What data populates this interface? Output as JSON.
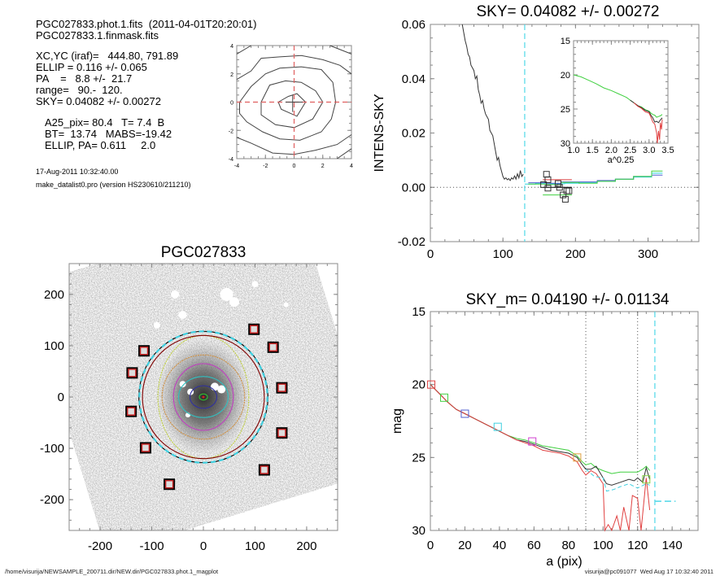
{
  "header": {
    "file_line": "PGC027833.phot.1.fits  (2011-04-01T20:20:01)",
    "mask_line": "PGC027833.1.finmask.fits",
    "xcyc": "XC,YC (iraf)=   444.80, 791.89",
    "ellip": "ELLIP = 0.116 +/- 0.065",
    "pa": "PA    =   8.8 +/-  21.7",
    "range": "range=   90.-  120.",
    "sky": "SKY= 0.04082 +/- 0.00272",
    "a25": "A25_pix= 80.4   T= 7.4  B",
    "bt": "BT=  13.74   MABS=-19.42",
    "ellip_pa": "ELLIP, PA= 0.611     2.0",
    "date": "17-Aug-2011 10:32:40.00",
    "program": "make_datalist0.pro (version HS230610/211210)"
  },
  "footer": {
    "path": "/home/visurija/NEWSAMPLE_200711.dir/NEW.dir/PGC027833.phot.1_magplot",
    "user_stamp": "visurija@pc091077  Wed Aug 17 10:32:40 2011"
  },
  "chart_data": [
    {
      "id": "center-contour",
      "type": "line",
      "title": "",
      "xlim": [
        -4,
        4
      ],
      "ylim": [
        -4,
        4
      ],
      "xticks": [
        "-4",
        "-2",
        "0",
        "2",
        "4"
      ],
      "yticks": [
        "-4",
        "-2",
        "0",
        "2",
        "4"
      ],
      "crosshair": {
        "x": 0,
        "y": 0,
        "color": "#e06060"
      },
      "contours": [
        [
          [
            -1.1,
            0
          ],
          [
            -0.4,
            0.4
          ],
          [
            0.2,
            0.6
          ],
          [
            0.8,
            0
          ],
          [
            0.2,
            -1.0
          ],
          [
            -0.9,
            -0.5
          ],
          [
            -1.1,
            0
          ]
        ],
        [
          [
            -2.3,
            0
          ],
          [
            -1.7,
            1.2
          ],
          [
            -0.6,
            1.5
          ],
          [
            0.5,
            1.4
          ],
          [
            1.5,
            0.8
          ],
          [
            2.0,
            0
          ],
          [
            1.3,
            -1.2
          ],
          [
            0,
            -1.8
          ],
          [
            -1.3,
            -1.6
          ],
          [
            -2.3,
            -0.9
          ],
          [
            -2.3,
            0
          ]
        ],
        [
          [
            -3.8,
            0
          ],
          [
            -3.0,
            1.1
          ],
          [
            -2.0,
            2.0
          ],
          [
            -1.0,
            2.4
          ],
          [
            0.5,
            2.5
          ],
          [
            1.9,
            2.3
          ],
          [
            2.7,
            1.4
          ],
          [
            2.9,
            0
          ],
          [
            2.6,
            -1.2
          ],
          [
            1.9,
            -2.1
          ],
          [
            0.4,
            -2.7
          ],
          [
            -1.0,
            -2.6
          ],
          [
            -2.2,
            -2.1
          ],
          [
            -3.3,
            -1.4
          ],
          [
            -3.8,
            -0.8
          ],
          [
            -3.8,
            0
          ]
        ],
        [
          [
            -4,
            1.6
          ],
          [
            -3.0,
            2.2
          ],
          [
            -2.3,
            3.1
          ],
          [
            -1.0,
            3.2
          ],
          [
            0.5,
            3.3
          ],
          [
            2.0,
            3.0
          ],
          [
            3.2,
            2.6
          ],
          [
            4,
            2.0
          ]
        ],
        [
          [
            -4,
            -2.5
          ],
          [
            -3.0,
            -2.9
          ],
          [
            -1.5,
            -3.6
          ],
          [
            0.0,
            -3.7
          ],
          [
            1.5,
            -3.4
          ],
          [
            3.0,
            -3.0
          ],
          [
            4,
            -2.3
          ]
        ],
        [
          [
            -4,
            3.4
          ],
          [
            -3.0,
            4
          ]
        ],
        [
          [
            2.5,
            4
          ],
          [
            4,
            3.4
          ]
        ],
        [
          [
            3.0,
            -4
          ],
          [
            4,
            -3.3
          ]
        ]
      ]
    },
    {
      "id": "sky-profile",
      "type": "line",
      "title": "SKY= 0.04082 +/- 0.00272",
      "xlabel": "",
      "ylabel": "INTENS-SKY",
      "xlim": [
        0,
        370
      ],
      "ylim": [
        -0.02,
        0.06
      ],
      "xticks": [
        0,
        100,
        200,
        300
      ],
      "yticks": [
        -0.02,
        0.0,
        0.02,
        0.04,
        0.06
      ],
      "ytick_labels": [
        "-0.02",
        "0.00",
        "0.02",
        "0.04",
        "0.06"
      ],
      "zero_line": true,
      "vline_cyan": 130,
      "series": [
        {
          "name": "profile",
          "color": "#333333",
          "x": [
            44,
            46,
            48,
            50,
            52,
            54,
            56,
            58,
            60,
            62,
            64,
            66,
            68,
            70,
            72,
            74,
            76,
            78,
            80,
            82,
            84,
            86,
            88,
            90,
            92,
            94,
            96,
            98,
            100,
            102,
            104,
            106,
            108,
            110,
            112,
            114,
            116,
            118,
            120,
            122,
            124,
            126,
            128
          ],
          "y": [
            0.06,
            0.057,
            0.054,
            0.052,
            0.049,
            0.048,
            0.045,
            0.044,
            0.043,
            0.04,
            0.041,
            0.036,
            0.034,
            0.031,
            0.032,
            0.029,
            0.027,
            0.026,
            0.025,
            0.021,
            0.02,
            0.019,
            0.016,
            0.013,
            0.01,
            0.011,
            0.008,
            0.006,
            0.004,
            0.003,
            0.0035,
            0.0028,
            0.0032,
            0.0025,
            0.0035,
            0.003,
            0.0042,
            0.003,
            0.005,
            0.0035,
            0.0062,
            0.004,
            0.0048
          ]
        },
        {
          "name": "sky-steps-cyan",
          "color": "#2ad4e0",
          "step": true,
          "x": [
            130,
            145,
            165,
            185,
            205,
            230,
            255,
            280,
            305,
            320
          ],
          "y": [
            0.0012,
            0.0015,
            0.0013,
            0.0015,
            0.0018,
            0.0022,
            0.003,
            0.0038,
            0.0052,
            0.0052
          ]
        },
        {
          "name": "sky-steps-blue",
          "color": "#5060d0",
          "step": true,
          "x": [
            135,
            160,
            180,
            205,
            230,
            255,
            280,
            305,
            320
          ],
          "y": [
            0.0017,
            0.0015,
            0.002,
            0.002,
            0.0025,
            0.003,
            0.004,
            0.0045,
            0.0045
          ]
        },
        {
          "name": "sky-steps-green",
          "color": "#40d040",
          "step": true,
          "x": [
            135,
            160,
            180,
            205,
            230,
            255,
            280,
            305,
            320
          ],
          "y": [
            0.0012,
            0.001,
            0.0018,
            0.0015,
            0.0022,
            0.003,
            0.004,
            0.006,
            0.006
          ]
        },
        {
          "name": "sky-red",
          "color": "#e04040",
          "step": true,
          "x": [
            155,
            195
          ],
          "y": [
            0.0028,
            0.0028
          ]
        },
        {
          "name": "sky-black",
          "color": "#000000",
          "step": true,
          "x": [
            155,
            195
          ],
          "y": [
            0.0,
            0.0
          ]
        },
        {
          "name": "sky-green-low",
          "color": "#40d040",
          "step": true,
          "x": [
            155,
            195
          ],
          "y": [
            -0.0028,
            -0.0028
          ]
        }
      ],
      "markers": {
        "x": [
          160,
          162,
          156,
          162,
          176,
          178,
          183,
          186,
          188,
          191
        ],
        "y": [
          0.0048,
          0.0028,
          0.001,
          -0.0003,
          0.0014,
          0.0,
          -0.0028,
          -0.0044,
          -0.0013,
          -0.0013
        ]
      },
      "inset": {
        "xlabel": "a^0.25",
        "xlim": [
          1.0,
          3.5
        ],
        "ylim": [
          30,
          15
        ],
        "xticks": [
          "1.0",
          "1.5",
          "2.0",
          "2.5",
          "3.0",
          "3.5"
        ],
        "yticks": [
          "15",
          "20",
          "25",
          "30"
        ],
        "series": [
          {
            "name": "green",
            "color": "#40d040",
            "x": [
              1.0,
              1.2,
              1.4,
              1.6,
              1.8,
              2.0,
              2.2,
              2.4,
              2.5,
              2.6,
              2.7,
              2.8,
              2.9,
              3.0,
              3.05,
              3.1,
              3.15,
              3.2,
              3.25,
              3.3,
              3.35
            ],
            "y": [
              20.0,
              20.3,
              20.8,
              21.3,
              21.9,
              22.3,
              22.8,
              23.3,
              23.7,
              24.1,
              24.5,
              24.7,
              25.1,
              25.3,
              25.6,
              25.8,
              25.9,
              26.2,
              26.1,
              26.0,
              25.8
            ]
          },
          {
            "name": "black",
            "color": "#333333",
            "x": [
              2.5,
              2.6,
              2.7,
              2.8,
              2.9,
              3.0,
              3.05,
              3.1,
              3.15,
              3.2,
              3.25,
              3.3,
              3.35
            ],
            "y": [
              23.7,
              24.1,
              24.5,
              24.8,
              25.2,
              25.4,
              25.9,
              26.3,
              26.9,
              26.8,
              27.0,
              26.6,
              26.3
            ]
          },
          {
            "name": "red",
            "color": "#e04040",
            "x": [
              2.6,
              2.7,
              2.8,
              2.9,
              3.0,
              3.05,
              3.1,
              3.15,
              3.2,
              3.22,
              3.25,
              3.28,
              3.3,
              3.33,
              3.35
            ],
            "y": [
              24.1,
              24.6,
              24.9,
              25.4,
              25.6,
              26.2,
              26.9,
              27.2,
              28.5,
              30.0,
              28.2,
              29.5,
              27.0,
              28.0,
              26.5
            ]
          }
        ]
      }
    },
    {
      "id": "galaxy-image",
      "type": "scatter",
      "title": "PGC027833",
      "xlim": [
        -260,
        260
      ],
      "ylim": [
        -260,
        260
      ],
      "xticks": [
        -200,
        -100,
        0,
        100,
        200
      ],
      "yticks": [
        -200,
        -100,
        0,
        100,
        200
      ],
      "masked_squares": {
        "x": [
          -115,
          -138,
          -140,
          -112,
          -66,
          98,
          135,
          152,
          152,
          118
        ],
        "y": [
          90,
          47,
          -28,
          -99,
          -170,
          132,
          97,
          18,
          -70,
          -142
        ]
      },
      "ellipses": [
        {
          "name": "green",
          "color": "#30c030",
          "a": 8,
          "b": 6
        },
        {
          "name": "blue",
          "color": "#3030a0",
          "a": 26,
          "b": 22
        },
        {
          "name": "cyan",
          "color": "#30c0c0",
          "a": 48,
          "b": 40
        },
        {
          "name": "magenta",
          "color": "#c040c0",
          "a": 58,
          "b": 65
        },
        {
          "name": "orange",
          "color": "#d09040",
          "a": 80,
          "b": 82
        },
        {
          "name": "yellow",
          "color": "#c0d040",
          "a": 88,
          "b": 120
        },
        {
          "name": "darkred",
          "color": "#800000",
          "a": 118,
          "b": 120
        },
        {
          "name": "black",
          "color": "#000000",
          "a": 125,
          "b": 128
        },
        {
          "name": "cyan-dashed",
          "color": "#40d0e0",
          "a": 124,
          "b": 128
        }
      ]
    },
    {
      "id": "mag-profile",
      "type": "line",
      "title": "SKY_m=  0.04190 +/- 0.01134",
      "xlabel": "a (pix)",
      "ylabel": "mag",
      "xlim": [
        0,
        155
      ],
      "ylim": [
        30,
        15
      ],
      "xticks": [
        0,
        20,
        40,
        60,
        80,
        100,
        120,
        140
      ],
      "yticks": [
        15,
        20,
        25,
        30
      ],
      "vlines_dotted": [
        90,
        120
      ],
      "vline_cyan": 130,
      "cyan_hline": {
        "x": [
          130,
          142
        ],
        "y": 28
      },
      "markers": [
        {
          "x": 0.5,
          "y": 20.0,
          "color": "#e04040"
        },
        {
          "x": 8,
          "y": 20.9,
          "color": "#40d040"
        },
        {
          "x": 20,
          "y": 22.0,
          "color": "#5060d0"
        },
        {
          "x": 39,
          "y": 22.9,
          "color": "#40d0e0"
        },
        {
          "x": 59,
          "y": 23.9,
          "color": "#d040d0"
        },
        {
          "x": 85,
          "y": 25.0,
          "color": "#e0a040"
        },
        {
          "x": 125,
          "y": 26.5,
          "color": "#80d040"
        }
      ],
      "series": [
        {
          "name": "green",
          "color": "#40d040",
          "x": [
            0,
            5,
            10,
            15,
            20,
            25,
            30,
            35,
            40,
            45,
            50,
            55,
            60,
            65,
            70,
            75,
            80,
            85,
            88,
            90,
            93,
            96,
            100,
            105,
            110,
            115,
            120,
            123,
            125,
            127
          ],
          "y": [
            20.0,
            20.6,
            21.2,
            21.7,
            22.0,
            22.3,
            22.6,
            22.9,
            23.2,
            23.5,
            23.7,
            23.8,
            24.0,
            24.2,
            24.3,
            24.4,
            24.5,
            24.9,
            25.3,
            25.5,
            25.4,
            25.7,
            25.9,
            26.1,
            26.0,
            26.0,
            26.0,
            25.8,
            25.6,
            25.9
          ]
        },
        {
          "name": "black",
          "color": "#333333",
          "x": [
            0,
            5,
            10,
            15,
            20,
            25,
            30,
            35,
            40,
            45,
            50,
            55,
            60,
            65,
            70,
            75,
            80,
            85,
            88,
            90,
            93,
            96,
            100,
            102,
            105,
            110,
            115,
            118,
            120,
            123,
            125,
            127
          ],
          "y": [
            20.0,
            20.6,
            21.2,
            21.7,
            22.0,
            22.3,
            22.6,
            22.9,
            23.2,
            23.5,
            23.8,
            23.9,
            24.1,
            24.3,
            24.5,
            24.6,
            24.7,
            25.0,
            25.5,
            25.8,
            25.8,
            25.6,
            26.4,
            26.8,
            26.9,
            26.7,
            26.5,
            26.6,
            26.4,
            26.7,
            25.7,
            26.5
          ]
        },
        {
          "name": "red",
          "color": "#e04040",
          "x": [
            0,
            5,
            10,
            15,
            20,
            25,
            30,
            35,
            40,
            45,
            50,
            55,
            60,
            65,
            70,
            75,
            80,
            85,
            88,
            90,
            93,
            96,
            100,
            101,
            103,
            105,
            108,
            110,
            112,
            115,
            117,
            120,
            122,
            125,
            127
          ],
          "y": [
            20.0,
            20.6,
            21.2,
            21.7,
            22.0,
            22.3,
            22.6,
            22.9,
            23.2,
            23.5,
            23.8,
            24.0,
            24.2,
            24.5,
            24.6,
            24.7,
            24.9,
            25.3,
            25.9,
            26.2,
            25.9,
            26.1,
            26.8,
            30.0,
            29.6,
            30.0,
            29.0,
            30.0,
            28.4,
            30.0,
            27.6,
            27.8,
            30.0,
            26.4,
            28.6
          ]
        },
        {
          "name": "cyan-dashed",
          "color": "#40d0e0",
          "dashed": true,
          "x": [
            90,
            95,
            100,
            102,
            106,
            110,
            115,
            120,
            125,
            127
          ],
          "y": [
            25.8,
            26.3,
            26.4,
            27.3,
            27.2,
            27.0,
            26.8,
            27.1,
            26.8,
            26.9
          ]
        }
      ]
    }
  ]
}
